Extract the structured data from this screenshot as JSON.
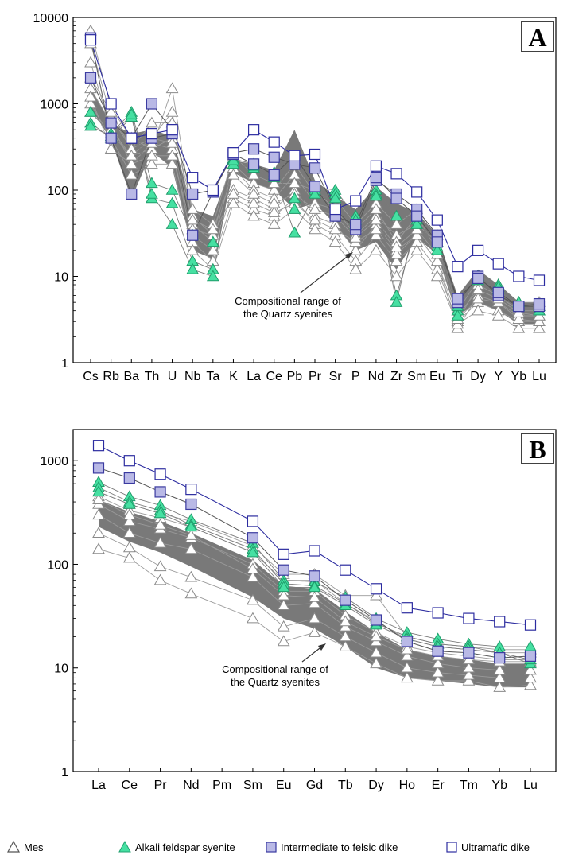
{
  "legend": {
    "items": [
      {
        "label": "Mes",
        "marker": "triangle-open"
      },
      {
        "label": "Alkali feldspar syenite",
        "marker": "triangle-filled"
      },
      {
        "label": "Intermediate to felsic dike",
        "marker": "square-filled"
      },
      {
        "label": "Ultramafic dike",
        "marker": "square-open"
      }
    ]
  },
  "colors": {
    "mes": "#9a9a9a",
    "alkali": "#46e0a2",
    "intermediate_fill": "#b9b9e6",
    "intermediate_stroke": "#3a3aa0",
    "ultramafic": "#2c2ca0",
    "range_band": "#6a6a6a"
  },
  "chart_data": [
    {
      "type": "line",
      "panel_label": "A",
      "y_scale": "log",
      "ylim": [
        1,
        10000
      ],
      "y_ticks": [
        "1",
        "10",
        "100",
        "1000",
        "10000"
      ],
      "categories": [
        "Cs",
        "Rb",
        "Ba",
        "Th",
        "U",
        "Nb",
        "Ta",
        "K",
        "La",
        "Ce",
        "Pb",
        "Pr",
        "Sr",
        "P",
        "Nd",
        "Zr",
        "Sm",
        "Eu",
        "Ti",
        "Dy",
        "Y",
        "Yb",
        "Lu"
      ],
      "annotation": [
        "Compositional range of",
        "the Quartz syenites"
      ],
      "band": {
        "upper": [
          1500,
          600,
          450,
          500,
          420,
          60,
          50,
          220,
          200,
          170,
          500,
          130,
          85,
          60,
          110,
          70,
          55,
          30,
          6,
          12,
          8,
          5,
          5
        ],
        "lower": [
          900,
          380,
          80,
          280,
          180,
          20,
          16,
          160,
          120,
          100,
          60,
          70,
          40,
          20,
          25,
          12,
          28,
          18,
          3.5,
          5,
          4,
          2.8,
          2.8
        ]
      },
      "series": [
        {
          "group": "mes",
          "values": [
            7000,
            900,
            400,
            300,
            1500,
            50,
            30,
            200,
            120,
            100,
            200,
            90,
            80,
            40,
            70,
            40,
            60,
            30,
            4,
            10,
            8,
            5,
            5
          ]
        },
        {
          "group": "mes",
          "values": [
            5000,
            700,
            300,
            400,
            800,
            40,
            25,
            180,
            100,
            80,
            150,
            70,
            60,
            30,
            50,
            30,
            40,
            25,
            3,
            8,
            6,
            4,
            4
          ]
        },
        {
          "group": "mes",
          "values": [
            3000,
            500,
            250,
            300,
            400,
            30,
            20,
            100,
            80,
            60,
            100,
            50,
            40,
            20,
            40,
            20,
            30,
            15,
            2.5,
            6,
            5,
            3.5,
            3.5
          ]
        },
        {
          "group": "mes",
          "values": [
            1500,
            600,
            200,
            350,
            300,
            25,
            15,
            80,
            60,
            50,
            80,
            40,
            30,
            15,
            30,
            15,
            25,
            12,
            3,
            5,
            4,
            3,
            3
          ]
        },
        {
          "group": "mes",
          "values": [
            1000,
            400,
            150,
            200,
            200,
            20,
            12,
            70,
            50,
            40,
            60,
            35,
            25,
            12,
            20,
            10,
            20,
            10,
            2.8,
            4,
            3.5,
            2.5,
            2.5
          ]
        },
        {
          "group": "mes",
          "values": [
            2000,
            800,
            300,
            600,
            600,
            60,
            40,
            250,
            150,
            120,
            120,
            100,
            60,
            35,
            60,
            25,
            50,
            20,
            4,
            9,
            7,
            4.5,
            4.5
          ]
        },
        {
          "group": "mes",
          "values": [
            1200,
            300,
            200,
            250,
            250,
            35,
            30,
            90,
            70,
            55,
            70,
            45,
            35,
            25,
            35,
            18,
            30,
            15,
            3.2,
            5.5,
            5,
            3.2,
            3
          ]
        },
        {
          "group": "mes",
          "values": [
            800,
            450,
            250,
            400,
            350,
            45,
            35,
            150,
            90,
            70,
            90,
            60,
            50,
            28,
            45,
            22,
            35,
            18,
            3.5,
            7,
            5.5,
            3.8,
            3.5
          ]
        },
        {
          "group": "alkali",
          "values": [
            800,
            450,
            800,
            120,
            100,
            30,
            25,
            230,
            200,
            160,
            80,
            110,
            100,
            50,
            100,
            50,
            45,
            22,
            4,
            10,
            8,
            5,
            4
          ]
        },
        {
          "group": "alkali",
          "values": [
            600,
            400,
            700,
            80,
            70,
            15,
            12,
            200,
            180,
            140,
            60,
            100,
            90,
            40,
            90,
            6,
            40,
            20,
            3.5,
            9,
            7,
            4.5,
            4
          ]
        },
        {
          "group": "alkali",
          "values": [
            550,
            420,
            750,
            90,
            40,
            12,
            10,
            220,
            190,
            150,
            32,
            90,
            80,
            45,
            85,
            5,
            50,
            25,
            4.5,
            10,
            7.5,
            5,
            4.5
          ]
        },
        {
          "group": "intermediate",
          "values": [
            2000,
            600,
            400,
            1000,
            500,
            90,
            100,
            270,
            300,
            240,
            200,
            180,
            60,
            35,
            130,
            90,
            60,
            30,
            5,
            10,
            6,
            4.5,
            4.5
          ]
        },
        {
          "group": "intermediate",
          "values": [
            5800,
            400,
            90,
            400,
            450,
            30,
            95,
            260,
            200,
            150,
            250,
            110,
            50,
            40,
            140,
            80,
            50,
            25,
            5.5,
            9.5,
            6.5,
            4.5,
            4.8
          ]
        },
        {
          "group": "ultramafic",
          "values": [
            5500,
            1000,
            400,
            450,
            500,
            140,
            100,
            270,
            500,
            360,
            250,
            260,
            60,
            75,
            190,
            155,
            95,
            45,
            13,
            20,
            14,
            10,
            9
          ]
        }
      ]
    },
    {
      "type": "line",
      "panel_label": "B",
      "y_scale": "log",
      "ylim": [
        1,
        2000
      ],
      "y_ticks": [
        "1",
        "10",
        "100",
        "1000"
      ],
      "categories": [
        "La",
        "Ce",
        "Pr",
        "Nd",
        "Pm",
        "Sm",
        "Eu",
        "Gd",
        "Tb",
        "Dy",
        "Ho",
        "Er",
        "Tm",
        "Yb",
        "Lu"
      ],
      "annotation": [
        "Compositional range of",
        "the Quartz syenites"
      ],
      "band": {
        "upper": [
          420,
          320,
          260,
          200,
          null,
          110,
          62,
          58,
          35,
          22,
          15,
          13,
          12,
          11,
          11
        ],
        "lower": [
          230,
          165,
          130,
          95,
          null,
          48,
          30,
          24,
          16,
          10,
          8,
          7.5,
          7,
          6.5,
          6.5
        ]
      },
      "series": [
        {
          "group": "mes",
          "values": [
            140,
            115,
            70,
            52,
            null,
            30,
            18,
            22,
            16,
            11,
            8,
            7.5,
            7.5,
            6.5,
            6.8
          ]
        },
        {
          "group": "mes",
          "values": [
            200,
            145,
            95,
            75,
            null,
            45,
            25,
            30,
            20,
            14,
            10,
            9,
            8.5,
            8,
            8
          ]
        },
        {
          "group": "mes",
          "values": [
            300,
            200,
            160,
            140,
            null,
            75,
            40,
            42,
            25,
            18,
            13,
            11,
            10,
            9.5,
            9.5
          ]
        },
        {
          "group": "mes",
          "values": [
            380,
            260,
            220,
            180,
            null,
            100,
            55,
            55,
            32,
            22,
            16,
            14,
            13,
            12,
            12
          ]
        },
        {
          "group": "mes",
          "values": [
            450,
            330,
            280,
            230,
            null,
            130,
            70,
            70,
            42,
            28,
            19,
            16,
            15,
            14,
            14
          ]
        },
        {
          "group": "mes",
          "values": [
            500,
            380,
            310,
            260,
            null,
            150,
            80,
            80,
            50,
            50,
            20,
            17,
            16,
            15,
            15
          ]
        },
        {
          "group": "mes",
          "values": [
            420,
            300,
            240,
            190,
            null,
            90,
            50,
            48,
            28,
            20,
            15,
            13,
            12,
            11.5,
            11.5
          ]
        },
        {
          "group": "alkali",
          "values": [
            620,
            450,
            370,
            270,
            null,
            160,
            70,
            68,
            48,
            30,
            22,
            19,
            17,
            16,
            16
          ]
        },
        {
          "group": "alkali",
          "values": [
            550,
            400,
            330,
            240,
            null,
            140,
            65,
            62,
            42,
            27,
            20,
            17,
            16,
            14,
            11
          ]
        },
        {
          "group": "alkali",
          "values": [
            500,
            380,
            310,
            230,
            null,
            130,
            60,
            60,
            40,
            26,
            19,
            16,
            15,
            14,
            12
          ]
        },
        {
          "group": "intermediate",
          "values": [
            850,
            680,
            500,
            380,
            null,
            180,
            88,
            77,
            45,
            29,
            18,
            14.5,
            14,
            12.5,
            13
          ]
        },
        {
          "group": "ultramafic",
          "values": [
            1400,
            1000,
            740,
            530,
            null,
            260,
            125,
            135,
            88,
            58,
            38,
            34,
            30,
            28,
            26
          ]
        }
      ]
    }
  ]
}
